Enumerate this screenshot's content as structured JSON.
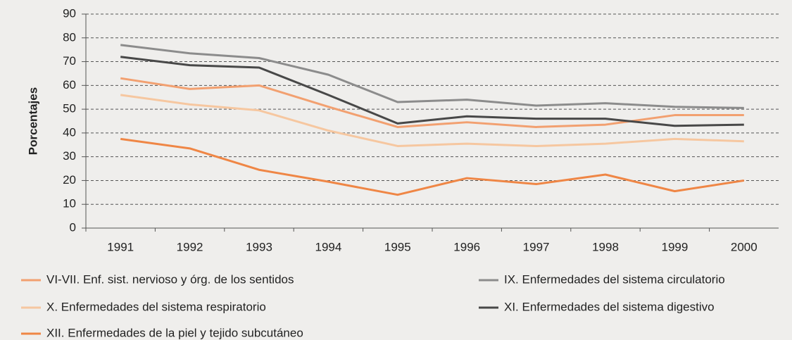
{
  "chart_data": {
    "type": "line",
    "y_label": "Porcentajes",
    "categories": [
      "1991",
      "1992",
      "1993",
      "1994",
      "1995",
      "1996",
      "1997",
      "1998",
      "1999",
      "2000"
    ],
    "series": [
      {
        "name": "VI-VII. Enf. sist. nervioso y órg. de los sentidos",
        "color": "#f2a070",
        "values": [
          63,
          58.5,
          60,
          51,
          42.5,
          44.5,
          42.5,
          43.5,
          47.5,
          47.5
        ]
      },
      {
        "name": "IX. Enfermedades del sistema circulatorio",
        "color": "#8c8c8c",
        "values": [
          77,
          73.5,
          71.5,
          64.5,
          53,
          54,
          51.5,
          52.5,
          51,
          50.5
        ]
      },
      {
        "name": "X. Enfermedades del sistema respiratorio",
        "color": "#f6c7a0",
        "values": [
          56,
          52,
          49.5,
          41,
          34.5,
          35.5,
          34.5,
          35.5,
          37.5,
          36.5
        ]
      },
      {
        "name": "XI. Enfermedades del sistema digestivo",
        "color": "#484848",
        "values": [
          72,
          68.5,
          67.5,
          56,
          44,
          47,
          46,
          46,
          43,
          43.5
        ]
      },
      {
        "name": "XII. Enfermedades de la piel y tejido subcutáneo",
        "color": "#ef8645",
        "values": [
          37.5,
          33.5,
          24.5,
          19.5,
          14,
          21,
          18.5,
          22.5,
          15.5,
          20
        ]
      }
    ],
    "ylim": [
      0,
      90
    ],
    "yticks": [
      0,
      10,
      20,
      30,
      40,
      50,
      60,
      70,
      80,
      90
    ],
    "grid": true
  }
}
